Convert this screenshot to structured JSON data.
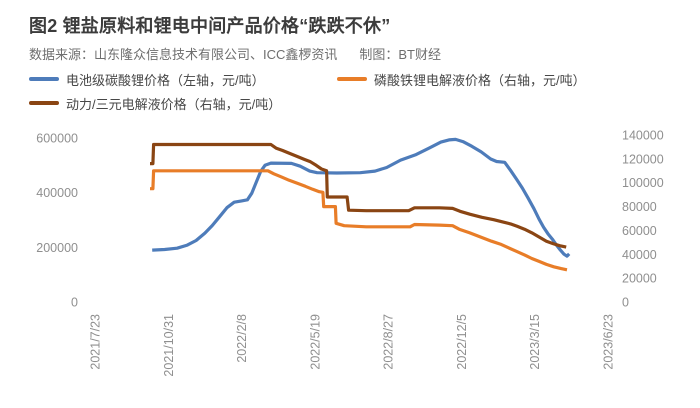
{
  "header": {
    "title": "图2 锂盐原料和锂电中间产品价格“跌跌不休”",
    "source": "数据来源：山东隆众信息技术有限公司、ICC鑫椤资讯",
    "credit": "制图：BT财经"
  },
  "colors": {
    "blue": "#4e7cba",
    "orange": "#e87d28",
    "brown": "#8a4513",
    "axis_text": "#8f8f8f",
    "title_text": "#3c3c3c",
    "body_text": "#6e6e6e"
  },
  "chart_data": {
    "type": "line",
    "title": "锂盐原料和锂电中间产品价格",
    "grid": false,
    "legend_position": "top-left",
    "x_unit": "days since 2021/7/23",
    "x_range_days": [
      0,
      700
    ],
    "x_tick_days": [
      0,
      100,
      200,
      300,
      400,
      500,
      600,
      700
    ],
    "x_tick_labels": [
      "2021/7/23",
      "2021/10/31",
      "2022/2/8",
      "2022/5/19",
      "2022/8/27",
      "2022/12/5",
      "2023/3/15",
      "2023/6/23"
    ],
    "left_axis": {
      "label": "元/吨",
      "range": [
        0,
        600000
      ],
      "ticks": [
        0,
        200000,
        400000,
        600000
      ]
    },
    "right_axis": {
      "label": "元/吨",
      "range": [
        0,
        140000
      ],
      "ticks": [
        0,
        20000,
        40000,
        60000,
        80000,
        100000,
        120000,
        140000
      ]
    },
    "series": [
      {
        "name": "电池级碳酸锂价格（左轴，元/吨）",
        "key": "battery-lithium-carbonate",
        "axis": "left",
        "color": "#4e7cba",
        "points": [
          [
            78,
            190000
          ],
          [
            95,
            192000
          ],
          [
            112,
            197000
          ],
          [
            126,
            208000
          ],
          [
            138,
            225000
          ],
          [
            150,
            252000
          ],
          [
            160,
            280000
          ],
          [
            170,
            312000
          ],
          [
            180,
            345000
          ],
          [
            190,
            365000
          ],
          [
            200,
            370000
          ],
          [
            208,
            374000
          ],
          [
            214,
            398000
          ],
          [
            220,
            438000
          ],
          [
            226,
            477000
          ],
          [
            232,
            500000
          ],
          [
            240,
            508000
          ],
          [
            268,
            507000
          ],
          [
            280,
            497000
          ],
          [
            293,
            479000
          ],
          [
            303,
            473000
          ],
          [
            330,
            472000
          ],
          [
            362,
            473000
          ],
          [
            382,
            479000
          ],
          [
            398,
            492000
          ],
          [
            417,
            519000
          ],
          [
            437,
            538000
          ],
          [
            456,
            563000
          ],
          [
            472,
            585000
          ],
          [
            483,
            593000
          ],
          [
            492,
            595000
          ],
          [
            502,
            587000
          ],
          [
            514,
            570000
          ],
          [
            527,
            549000
          ],
          [
            540,
            523000
          ],
          [
            548,
            514000
          ],
          [
            559,
            511000
          ],
          [
            567,
            482000
          ],
          [
            575,
            450000
          ],
          [
            583,
            417000
          ],
          [
            591,
            380000
          ],
          [
            599,
            341000
          ],
          [
            606,
            303000
          ],
          [
            612,
            274000
          ],
          [
            618,
            250000
          ],
          [
            624,
            230000
          ],
          [
            630,
            207000
          ],
          [
            635,
            190000
          ],
          [
            640,
            175000
          ],
          [
            644,
            168000
          ],
          [
            647,
            176000
          ]
        ]
      },
      {
        "name": "磷酸铁锂电解液价格（右轴，元/吨）",
        "key": "lfp-electrolyte",
        "axis": "right",
        "color": "#e87d28",
        "points": [
          [
            75,
            95000
          ],
          [
            79,
            95000
          ],
          [
            80,
            110000
          ],
          [
            236,
            110000
          ],
          [
            244,
            107500
          ],
          [
            254,
            105000
          ],
          [
            265,
            102000
          ],
          [
            276,
            99500
          ],
          [
            287,
            97000
          ],
          [
            297,
            94500
          ],
          [
            306,
            92500
          ],
          [
            311,
            92000
          ],
          [
            312,
            80000
          ],
          [
            328,
            80000
          ],
          [
            329,
            66000
          ],
          [
            340,
            64000
          ],
          [
            370,
            63000
          ],
          [
            430,
            63000
          ],
          [
            436,
            65000
          ],
          [
            470,
            64500
          ],
          [
            488,
            64000
          ],
          [
            497,
            61000
          ],
          [
            511,
            58000
          ],
          [
            526,
            54500
          ],
          [
            541,
            51000
          ],
          [
            553,
            48500
          ],
          [
            564,
            45500
          ],
          [
            575,
            42500
          ],
          [
            586,
            39500
          ],
          [
            596,
            36500
          ],
          [
            606,
            34000
          ],
          [
            616,
            31500
          ],
          [
            626,
            29500
          ],
          [
            636,
            28000
          ],
          [
            644,
            27000
          ]
        ]
      },
      {
        "name": "动力/三元电解液价格（右轴，元/吨）",
        "key": "ternary-electrolyte",
        "axis": "right",
        "color": "#8a4513",
        "points": [
          [
            75,
            116000
          ],
          [
            79,
            116000
          ],
          [
            80,
            132000
          ],
          [
            240,
            132000
          ],
          [
            247,
            129000
          ],
          [
            256,
            127000
          ],
          [
            266,
            124500
          ],
          [
            276,
            122000
          ],
          [
            286,
            119500
          ],
          [
            294,
            117500
          ],
          [
            302,
            114500
          ],
          [
            309,
            111500
          ],
          [
            316,
            110000
          ],
          [
            317,
            88000
          ],
          [
            344,
            88000
          ],
          [
            346,
            77000
          ],
          [
            370,
            76500
          ],
          [
            428,
            76500
          ],
          [
            436,
            79000
          ],
          [
            470,
            79000
          ],
          [
            488,
            78500
          ],
          [
            498,
            76000
          ],
          [
            512,
            73500
          ],
          [
            528,
            71000
          ],
          [
            544,
            69000
          ],
          [
            557,
            67000
          ],
          [
            567,
            65500
          ],
          [
            576,
            63500
          ],
          [
            586,
            61000
          ],
          [
            596,
            58000
          ],
          [
            606,
            54500
          ],
          [
            616,
            51000
          ],
          [
            625,
            49000
          ],
          [
            634,
            47200
          ],
          [
            643,
            46000
          ]
        ]
      }
    ]
  }
}
